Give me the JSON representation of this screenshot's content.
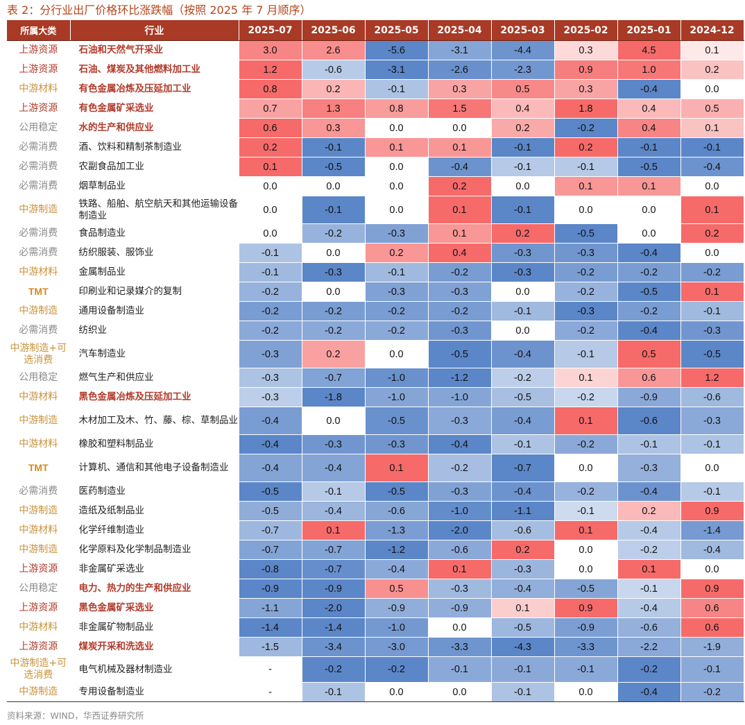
{
  "title": "表 2：分行业出厂价格环比涨跌幅（按照 2025 年 7 月顺序）",
  "source": "资料来源：WIND，华西证券研究所",
  "headers": {
    "category": "所属大类",
    "industry": "行业",
    "months": [
      "2025-07",
      "2025-06",
      "2025-05",
      "2025-04",
      "2025-03",
      "2025-02",
      "2025-01",
      "2024-12"
    ]
  },
  "colors": {
    "header_bg": "#a83a26",
    "strong_red": "#f66a6a",
    "strong_blue": "#5b86c8",
    "category_orange": "#c9923a",
    "category_red": "#b23a2a",
    "category_gray": "#8a8a8a"
  },
  "rows": [
    {
      "category": "上游资源",
      "cat_color": "red",
      "industry": "石油和天然气开采业",
      "highlight": true,
      "values": [
        "3.0",
        "2.6",
        "-5.6",
        "-3.1",
        "-4.4",
        "0.3",
        "4.5",
        "0.1"
      ]
    },
    {
      "category": "上游资源",
      "cat_color": "red",
      "industry": "石油、煤炭及其他燃料加工业",
      "highlight": true,
      "values": [
        "1.2",
        "-0.6",
        "-3.1",
        "-2.6",
        "-2.3",
        "0.9",
        "1.0",
        "0.2"
      ]
    },
    {
      "category": "中游材料",
      "cat_color": "orange",
      "industry": "有色金属冶炼及压延加工业",
      "highlight": true,
      "values": [
        "0.8",
        "0.2",
        "-0.1",
        "0.3",
        "0.5",
        "0.3",
        "-0.4",
        "0.0"
      ]
    },
    {
      "category": "上游资源",
      "cat_color": "red",
      "industry": "有色金属矿采选业",
      "highlight": true,
      "values": [
        "0.7",
        "1.3",
        "0.8",
        "1.5",
        "0.4",
        "1.8",
        "0.4",
        "0.5"
      ]
    },
    {
      "category": "公用稳定",
      "cat_color": "gray",
      "industry": "水的生产和供应业",
      "highlight": true,
      "values": [
        "0.6",
        "0.3",
        "0.0",
        "0.0",
        "0.2",
        "-0.2",
        "0.4",
        "0.1"
      ]
    },
    {
      "category": "必需消费",
      "cat_color": "gray",
      "industry": "酒、饮料和精制茶制造业",
      "highlight": false,
      "values": [
        "0.2",
        "-0.1",
        "0.1",
        "0.1",
        "-0.1",
        "0.2",
        "-0.1",
        "-0.1"
      ]
    },
    {
      "category": "必需消费",
      "cat_color": "gray",
      "industry": "农副食品加工业",
      "highlight": false,
      "values": [
        "0.1",
        "-0.5",
        "0.0",
        "-0.4",
        "-0.1",
        "-0.1",
        "-0.5",
        "-0.4"
      ]
    },
    {
      "category": "必需消费",
      "cat_color": "gray",
      "industry": "烟草制品业",
      "highlight": false,
      "values": [
        "0.0",
        "0.0",
        "0.0",
        "0.2",
        "0.0",
        "0.1",
        "0.1",
        "0.0"
      ]
    },
    {
      "category": "中游制造",
      "cat_color": "orange",
      "industry": "铁路、船舶、航空航天和其他运输设备制造业",
      "highlight": false,
      "values": [
        "0.0",
        "-0.1",
        "0.0",
        "0.1",
        "-0.1",
        "0.0",
        "0.0",
        "0.1"
      ]
    },
    {
      "category": "必需消费",
      "cat_color": "gray",
      "industry": "食品制造业",
      "highlight": false,
      "values": [
        "0.0",
        "-0.2",
        "-0.3",
        "0.1",
        "0.2",
        "-0.5",
        "0.0",
        "0.2"
      ]
    },
    {
      "category": "必需消费",
      "cat_color": "gray",
      "industry": "纺织服装、服饰业",
      "highlight": false,
      "values": [
        "-0.1",
        "0.0",
        "0.2",
        "0.4",
        "-0.3",
        "-0.3",
        "-0.4",
        "0.0"
      ]
    },
    {
      "category": "中游材料",
      "cat_color": "orange",
      "industry": "金属制品业",
      "highlight": false,
      "values": [
        "-0.1",
        "-0.3",
        "-0.1",
        "-0.2",
        "-0.3",
        "-0.2",
        "-0.2",
        "-0.2"
      ]
    },
    {
      "category": "TMT",
      "cat_color": "tmt",
      "industry": "印刷业和记录媒介的复制",
      "highlight": false,
      "values": [
        "-0.2",
        "0.0",
        "-0.3",
        "-0.3",
        "0.0",
        "-0.2",
        "-0.5",
        "0.1"
      ]
    },
    {
      "category": "中游制造",
      "cat_color": "orange",
      "industry": "通用设备制造业",
      "highlight": false,
      "values": [
        "-0.2",
        "-0.2",
        "-0.2",
        "-0.2",
        "-0.1",
        "-0.3",
        "-0.2",
        "-0.1"
      ]
    },
    {
      "category": "必需消费",
      "cat_color": "gray",
      "industry": "纺织业",
      "highlight": false,
      "values": [
        "-0.2",
        "-0.2",
        "-0.2",
        "-0.3",
        "0.0",
        "-0.2",
        "-0.4",
        "-0.3"
      ]
    },
    {
      "category": "中游制造+可选消费",
      "cat_color": "orange",
      "industry": "汽车制造业",
      "highlight": false,
      "values": [
        "-0.3",
        "0.2",
        "0.0",
        "-0.5",
        "-0.4",
        "-0.1",
        "0.5",
        "-0.5"
      ]
    },
    {
      "category": "公用稳定",
      "cat_color": "gray",
      "industry": "燃气生产和供应业",
      "highlight": false,
      "values": [
        "-0.3",
        "-0.7",
        "-1.0",
        "-1.2",
        "-0.2",
        "0.1",
        "0.6",
        "1.2"
      ]
    },
    {
      "category": "中游材料",
      "cat_color": "orange",
      "industry": "黑色金属冶炼及压延加工业",
      "highlight": true,
      "values": [
        "-0.3",
        "-1.8",
        "-1.0",
        "-1.0",
        "-0.5",
        "-0.2",
        "-0.9",
        "-0.6"
      ]
    },
    {
      "category": "中游制造",
      "cat_color": "orange",
      "industry": "木材加工及木、竹、藤、棕、草制品业",
      "highlight": false,
      "values": [
        "-0.4",
        "0.0",
        "-0.5",
        "-0.3",
        "-0.4",
        "0.1",
        "-0.6",
        "-0.3"
      ]
    },
    {
      "category": "中游材料",
      "cat_color": "orange",
      "industry": "橡胶和塑料制品业",
      "highlight": false,
      "values": [
        "-0.4",
        "-0.3",
        "-0.3",
        "-0.4",
        "-0.1",
        "-0.2",
        "-0.1",
        "-0.1"
      ]
    },
    {
      "category": "TMT",
      "cat_color": "tmt",
      "industry": "计算机、通信和其他电子设备制造业",
      "highlight": false,
      "values": [
        "-0.4",
        "-0.4",
        "0.1",
        "-0.2",
        "-0.7",
        "0.0",
        "-0.3",
        "0.0"
      ]
    },
    {
      "category": "必需消费",
      "cat_color": "gray",
      "industry": "医药制造业",
      "highlight": false,
      "values": [
        "-0.5",
        "-0.1",
        "-0.5",
        "-0.3",
        "-0.4",
        "-0.2",
        "-0.4",
        "-0.1"
      ]
    },
    {
      "category": "中游制造",
      "cat_color": "orange",
      "industry": "造纸及纸制品业",
      "highlight": false,
      "values": [
        "-0.5",
        "-0.4",
        "-0.6",
        "-1.0",
        "-1.1",
        "-0.1",
        "0.2",
        "0.9"
      ]
    },
    {
      "category": "中游材料",
      "cat_color": "orange",
      "industry": "化学纤维制造业",
      "highlight": false,
      "values": [
        "-0.7",
        "0.1",
        "-1.3",
        "-2.0",
        "-0.6",
        "0.1",
        "-0.4",
        "-1.4"
      ]
    },
    {
      "category": "中游制造",
      "cat_color": "orange",
      "industry": "化学原料及化学制品制造业",
      "highlight": false,
      "values": [
        "-0.7",
        "-0.7",
        "-1.2",
        "-0.6",
        "0.2",
        "0.0",
        "-0.2",
        "-0.4"
      ]
    },
    {
      "category": "上游资源",
      "cat_color": "red",
      "industry": "非金属矿采选业",
      "highlight": false,
      "values": [
        "-0.8",
        "-0.7",
        "-0.4",
        "0.1",
        "-0.3",
        "0.0",
        "0.1",
        "0.0"
      ]
    },
    {
      "category": "公用稳定",
      "cat_color": "gray",
      "industry": "电力、热力的生产和供应业",
      "highlight": true,
      "values": [
        "-0.9",
        "-0.9",
        "0.5",
        "-0.3",
        "-0.4",
        "-0.5",
        "-0.1",
        "0.9"
      ]
    },
    {
      "category": "上游资源",
      "cat_color": "red",
      "industry": "黑色金属矿采选业",
      "highlight": true,
      "values": [
        "-1.1",
        "-2.0",
        "-0.9",
        "-0.9",
        "0.1",
        "0.9",
        "-0.4",
        "0.6"
      ]
    },
    {
      "category": "中游材料",
      "cat_color": "orange",
      "industry": "非金属矿物制品业",
      "highlight": false,
      "values": [
        "-1.4",
        "-1.4",
        "-1.0",
        "0.0",
        "-0.5",
        "-0.9",
        "-0.6",
        "0.6"
      ]
    },
    {
      "category": "上游资源",
      "cat_color": "red",
      "industry": "煤炭开采和洗选业",
      "highlight": true,
      "values": [
        "-1.5",
        "-3.4",
        "-3.0",
        "-3.3",
        "-4.3",
        "-3.3",
        "-2.2",
        "-1.9"
      ]
    },
    {
      "category": "中游制造+可选消费",
      "cat_color": "orange",
      "industry": "电气机械及器材制造业",
      "highlight": false,
      "values": [
        "-",
        "-0.2",
        "-0.2",
        "-0.1",
        "-0.1",
        "-0.1",
        "-0.2",
        "-0.1"
      ]
    },
    {
      "category": "中游制造",
      "cat_color": "orange",
      "industry": "专用设备制造业",
      "highlight": false,
      "values": [
        "-",
        "-0.1",
        "0.0",
        "0.0",
        "-0.1",
        "0.0",
        "-0.4",
        "-0.2"
      ]
    }
  ]
}
